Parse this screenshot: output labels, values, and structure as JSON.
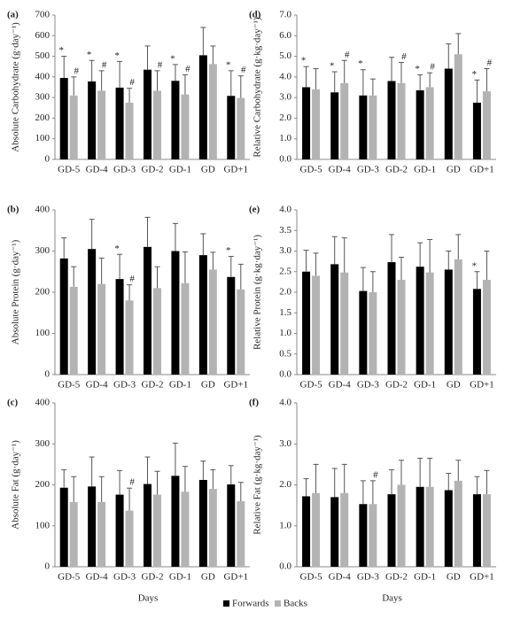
{
  "legend": [
    {
      "name": "Forwards",
      "color": "#000000"
    },
    {
      "name": "Backs",
      "color": "#b3b3b3"
    }
  ],
  "chart_data": [
    {
      "type": "bar",
      "panel": "(a)",
      "y_label": "Absolute Carbohydrate (g·day⁻¹)",
      "categories": [
        "GD-5",
        "GD-4",
        "GD-3",
        "GD-2",
        "GD-1",
        "GD",
        "GD+1"
      ],
      "ylim": [
        0,
        700
      ],
      "yticks": [
        0,
        100,
        200,
        300,
        400,
        500,
        600,
        700
      ],
      "series": [
        {
          "values": [
            395,
            378,
            348,
            435,
            381,
            505,
            308
          ],
          "errors": [
            105,
            102,
            127,
            115,
            79,
            135,
            122
          ],
          "markers": [
            "*",
            "*",
            "*",
            null,
            "*",
            null,
            "*"
          ]
        },
        {
          "values": [
            310,
            333,
            275,
            333,
            315,
            462,
            298
          ],
          "errors": [
            90,
            97,
            70,
            97,
            95,
            88,
            107
          ],
          "markers": [
            "#",
            "#",
            "#",
            "#",
            "#",
            null,
            "#"
          ]
        }
      ]
    },
    {
      "type": "bar",
      "panel": "(b)",
      "y_label": "Absolute Protein (g·day⁻¹)",
      "categories": [
        "GD-5",
        "GD-4",
        "GD-3",
        "GD-2",
        "GD-1",
        "GD",
        "GD+1"
      ],
      "ylim": [
        0,
        400
      ],
      "yticks": [
        0,
        100,
        200,
        300,
        400
      ],
      "series": [
        {
          "values": [
            282,
            305,
            232,
            310,
            300,
            290,
            237
          ],
          "errors": [
            50,
            72,
            60,
            72,
            67,
            52,
            50
          ],
          "markers": [
            null,
            null,
            "*",
            null,
            null,
            null,
            "*"
          ]
        },
        {
          "values": [
            213,
            220,
            180,
            210,
            222,
            255,
            207
          ],
          "errors": [
            49,
            63,
            38,
            52,
            76,
            42,
            61
          ],
          "markers": [
            null,
            null,
            "#",
            null,
            null,
            null,
            null
          ]
        }
      ]
    },
    {
      "type": "bar",
      "panel": "(c)",
      "y_label": "Absolute Fat (g·day⁻¹)",
      "x_label": "Days",
      "categories": [
        "GD-5",
        "GD-4",
        "GD-3",
        "GD-2",
        "GD-1",
        "GD",
        "GD+1"
      ],
      "ylim": [
        0,
        400
      ],
      "yticks": [
        0,
        100,
        200,
        300,
        400
      ],
      "series": [
        {
          "values": [
            193,
            196,
            176,
            202,
            222,
            212,
            201
          ],
          "errors": [
            44,
            72,
            59,
            66,
            80,
            46,
            46
          ],
          "markers": [
            null,
            null,
            null,
            null,
            null,
            null,
            null
          ]
        },
        {
          "values": [
            158,
            158,
            137,
            176,
            183,
            190,
            160
          ],
          "errors": [
            62,
            62,
            55,
            57,
            62,
            47,
            46
          ],
          "markers": [
            null,
            null,
            "#",
            null,
            null,
            null,
            null
          ]
        }
      ]
    },
    {
      "type": "bar",
      "panel": "(d)",
      "y_label": "Relative Carbohydrate (g·kg·day⁻¹)",
      "categories": [
        "GD-5",
        "GD-4",
        "GD-3",
        "GD-2",
        "GD-1",
        "GD",
        "GD+1"
      ],
      "ylim": [
        0,
        7
      ],
      "yticks": [
        {
          "value": 0,
          "label": "0.0"
        },
        {
          "value": 1,
          "label": "1.0"
        },
        {
          "value": 2,
          "label": "2.0"
        },
        {
          "value": 3,
          "label": "3.0"
        },
        {
          "value": 4,
          "label": "4.0"
        },
        {
          "value": 5,
          "label": "5.0"
        },
        {
          "value": 6,
          "label": "6.0"
        },
        {
          "value": 7,
          "label": "7.0"
        }
      ],
      "series": [
        {
          "values": [
            3.5,
            3.25,
            3.1,
            3.8,
            3.35,
            4.4,
            2.75
          ],
          "errors": [
            1.0,
            1.0,
            1.25,
            1.15,
            0.75,
            1.2,
            1.1
          ],
          "markers": [
            "*",
            "*",
            "*",
            null,
            "*",
            null,
            "*"
          ]
        },
        {
          "values": [
            3.4,
            3.7,
            3.1,
            3.7,
            3.5,
            5.1,
            3.3
          ],
          "errors": [
            1.0,
            1.1,
            0.8,
            1.0,
            0.7,
            1.0,
            1.1
          ],
          "markers": [
            null,
            "#",
            null,
            "#",
            "#",
            null,
            "#"
          ]
        }
      ]
    },
    {
      "type": "bar",
      "panel": "(e)",
      "y_label": "Relative Protein (g·kg·day⁻¹)",
      "categories": [
        "GD-5",
        "GD-4",
        "GD-3",
        "GD-2",
        "GD-1",
        "GD",
        "GD+1"
      ],
      "ylim": [
        0,
        4
      ],
      "yticks": [
        {
          "value": 0,
          "label": "0.0"
        },
        {
          "value": 0.5,
          "label": "0.5"
        },
        {
          "value": 1,
          "label": "1.0"
        },
        {
          "value": 1.5,
          "label": "1.5"
        },
        {
          "value": 2,
          "label": "2.0"
        },
        {
          "value": 2.5,
          "label": "2.5"
        },
        {
          "value": 3,
          "label": "3.0"
        },
        {
          "value": 3.5,
          "label": "3.5"
        },
        {
          "value": 4,
          "label": "4.0"
        }
      ],
      "series": [
        {
          "values": [
            2.5,
            2.68,
            2.03,
            2.73,
            2.62,
            2.55,
            2.08
          ],
          "errors": [
            0.52,
            0.67,
            0.57,
            0.67,
            0.58,
            0.45,
            0.42
          ],
          "markers": [
            null,
            null,
            null,
            null,
            null,
            null,
            "*"
          ]
        },
        {
          "values": [
            2.4,
            2.48,
            2.0,
            2.3,
            2.48,
            2.8,
            2.3
          ],
          "errors": [
            0.55,
            0.84,
            0.5,
            0.55,
            0.8,
            0.6,
            0.7
          ],
          "markers": [
            null,
            null,
            null,
            null,
            null,
            null,
            null
          ]
        }
      ]
    },
    {
      "type": "bar",
      "panel": "(f)",
      "y_label": "Relative Fat (g·kg·day⁻¹)",
      "x_label": "Days",
      "categories": [
        "GD-5",
        "GD-4",
        "GD-3",
        "GD-2",
        "GD-1",
        "GD",
        "GD+1"
      ],
      "ylim": [
        0,
        4
      ],
      "yticks": [
        {
          "value": 0,
          "label": "0.0"
        },
        {
          "value": 1,
          "label": "1.0"
        },
        {
          "value": 2,
          "label": "2.0"
        },
        {
          "value": 3,
          "label": "3.0"
        },
        {
          "value": 4,
          "label": "4.0"
        }
      ],
      "series": [
        {
          "values": [
            1.72,
            1.7,
            1.53,
            1.77,
            1.95,
            1.87,
            1.77
          ],
          "errors": [
            0.43,
            0.7,
            0.57,
            0.6,
            0.7,
            0.41,
            0.43
          ],
          "markers": [
            null,
            null,
            null,
            null,
            null,
            null,
            null
          ]
        },
        {
          "values": [
            1.8,
            1.8,
            1.53,
            2.0,
            1.95,
            2.1,
            1.77
          ],
          "errors": [
            0.7,
            0.7,
            0.57,
            0.6,
            0.7,
            0.5,
            0.58
          ],
          "markers": [
            null,
            null,
            "#",
            null,
            null,
            null,
            null
          ]
        }
      ]
    }
  ]
}
